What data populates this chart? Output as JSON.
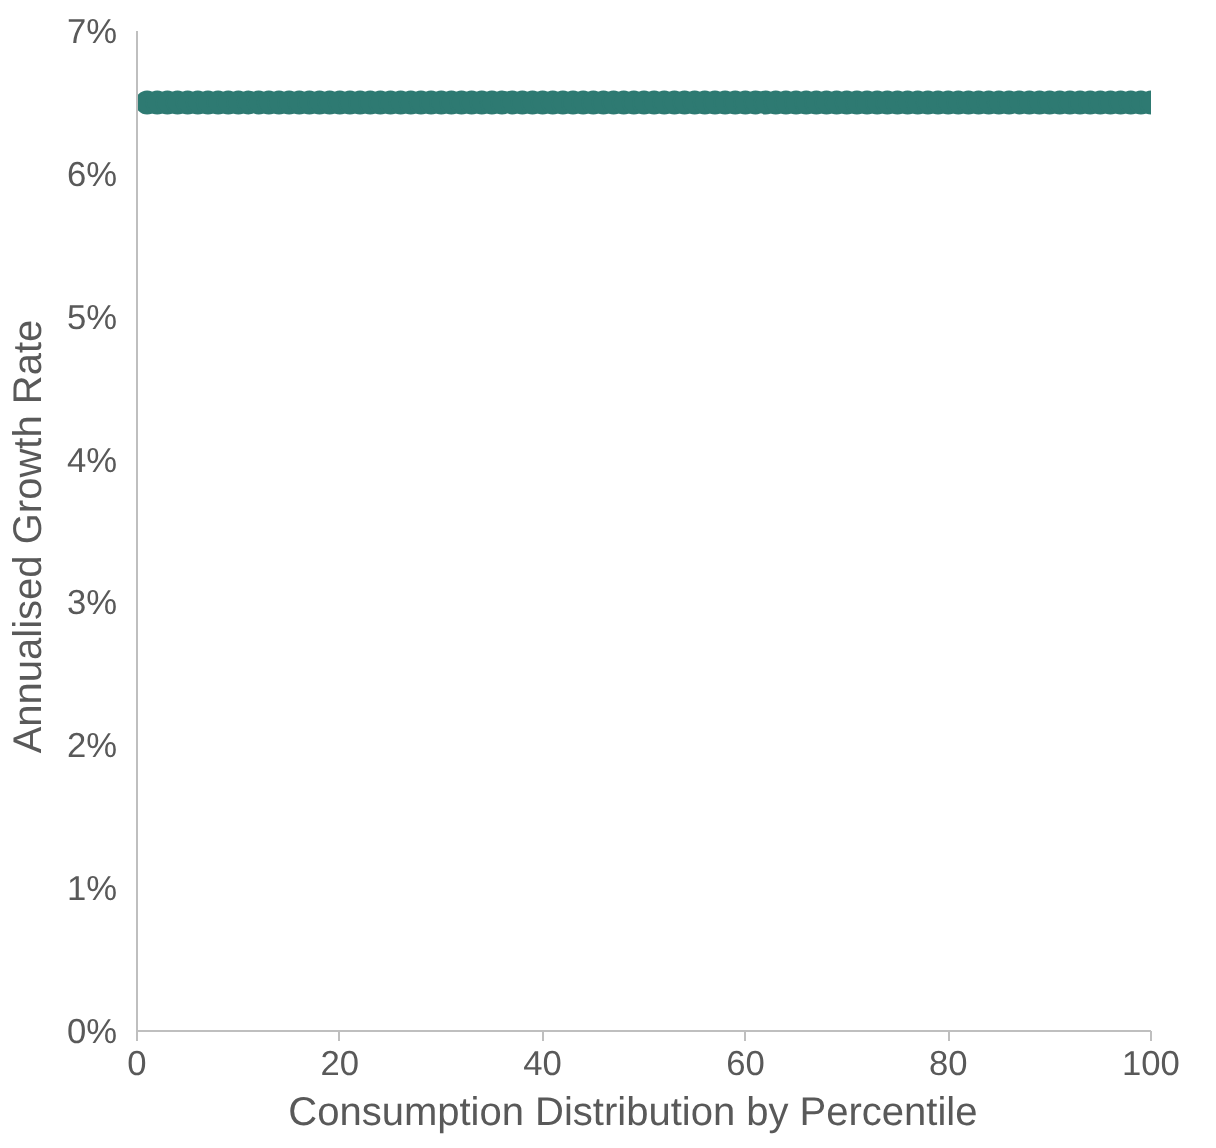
{
  "chart_data": {
    "type": "scatter",
    "xlabel": "Consumption  Distribution  by Percentile",
    "ylabel": "Annualised  Growth Rate",
    "xlim": [
      0,
      100
    ],
    "xticks": [
      0,
      20,
      40,
      60,
      80,
      100
    ],
    "ylim": [
      0,
      7
    ],
    "yticks": [
      {
        "value": 0,
        "label": "0%"
      },
      {
        "value": 1,
        "label": "1%"
      },
      {
        "value": 2,
        "label": "2%"
      },
      {
        "value": 3,
        "label": "3%"
      },
      {
        "value": 4,
        "label": "4%"
      },
      {
        "value": 5,
        "label": "5%"
      },
      {
        "value": 6,
        "label": "6%"
      },
      {
        "value": 7,
        "label": "7%"
      }
    ],
    "grid": false,
    "marker": "circle",
    "series": [
      {
        "color": "#2e7a72",
        "x": [
          1,
          2,
          3,
          4,
          5,
          6,
          7,
          8,
          9,
          10,
          11,
          12,
          13,
          14,
          15,
          16,
          17,
          18,
          19,
          20,
          21,
          22,
          23,
          24,
          25,
          26,
          27,
          28,
          29,
          30,
          31,
          32,
          33,
          34,
          35,
          36,
          37,
          38,
          39,
          40,
          41,
          42,
          43,
          44,
          45,
          46,
          47,
          48,
          49,
          50,
          51,
          52,
          53,
          54,
          55,
          56,
          57,
          58,
          59,
          60,
          61,
          62,
          63,
          64,
          65,
          66,
          67,
          68,
          69,
          70,
          71,
          72,
          73,
          74,
          75,
          76,
          77,
          78,
          79,
          80,
          81,
          82,
          83,
          84,
          85,
          86,
          87,
          88,
          89,
          90,
          91,
          92,
          93,
          94,
          95,
          96,
          97,
          98,
          99,
          100
        ],
        "values": [
          6.5,
          6.5,
          6.5,
          6.5,
          6.5,
          6.5,
          6.5,
          6.5,
          6.5,
          6.5,
          6.5,
          6.5,
          6.5,
          6.5,
          6.5,
          6.5,
          6.5,
          6.5,
          6.5,
          6.5,
          6.5,
          6.5,
          6.5,
          6.5,
          6.5,
          6.5,
          6.5,
          6.5,
          6.5,
          6.5,
          6.5,
          6.5,
          6.5,
          6.5,
          6.5,
          6.5,
          6.5,
          6.5,
          6.5,
          6.5,
          6.5,
          6.5,
          6.5,
          6.5,
          6.5,
          6.5,
          6.5,
          6.5,
          6.5,
          6.5,
          6.5,
          6.5,
          6.5,
          6.5,
          6.5,
          6.5,
          6.5,
          6.5,
          6.5,
          6.5,
          6.5,
          6.5,
          6.5,
          6.5,
          6.5,
          6.5,
          6.5,
          6.5,
          6.5,
          6.5,
          6.5,
          6.5,
          6.5,
          6.5,
          6.5,
          6.5,
          6.5,
          6.5,
          6.5,
          6.5,
          6.5,
          6.5,
          6.5,
          6.5,
          6.5,
          6.5,
          6.5,
          6.5,
          6.5,
          6.5,
          6.5,
          6.5,
          6.5,
          6.5,
          6.5,
          6.5,
          6.5,
          6.5,
          6.5,
          6.5
        ]
      }
    ]
  }
}
